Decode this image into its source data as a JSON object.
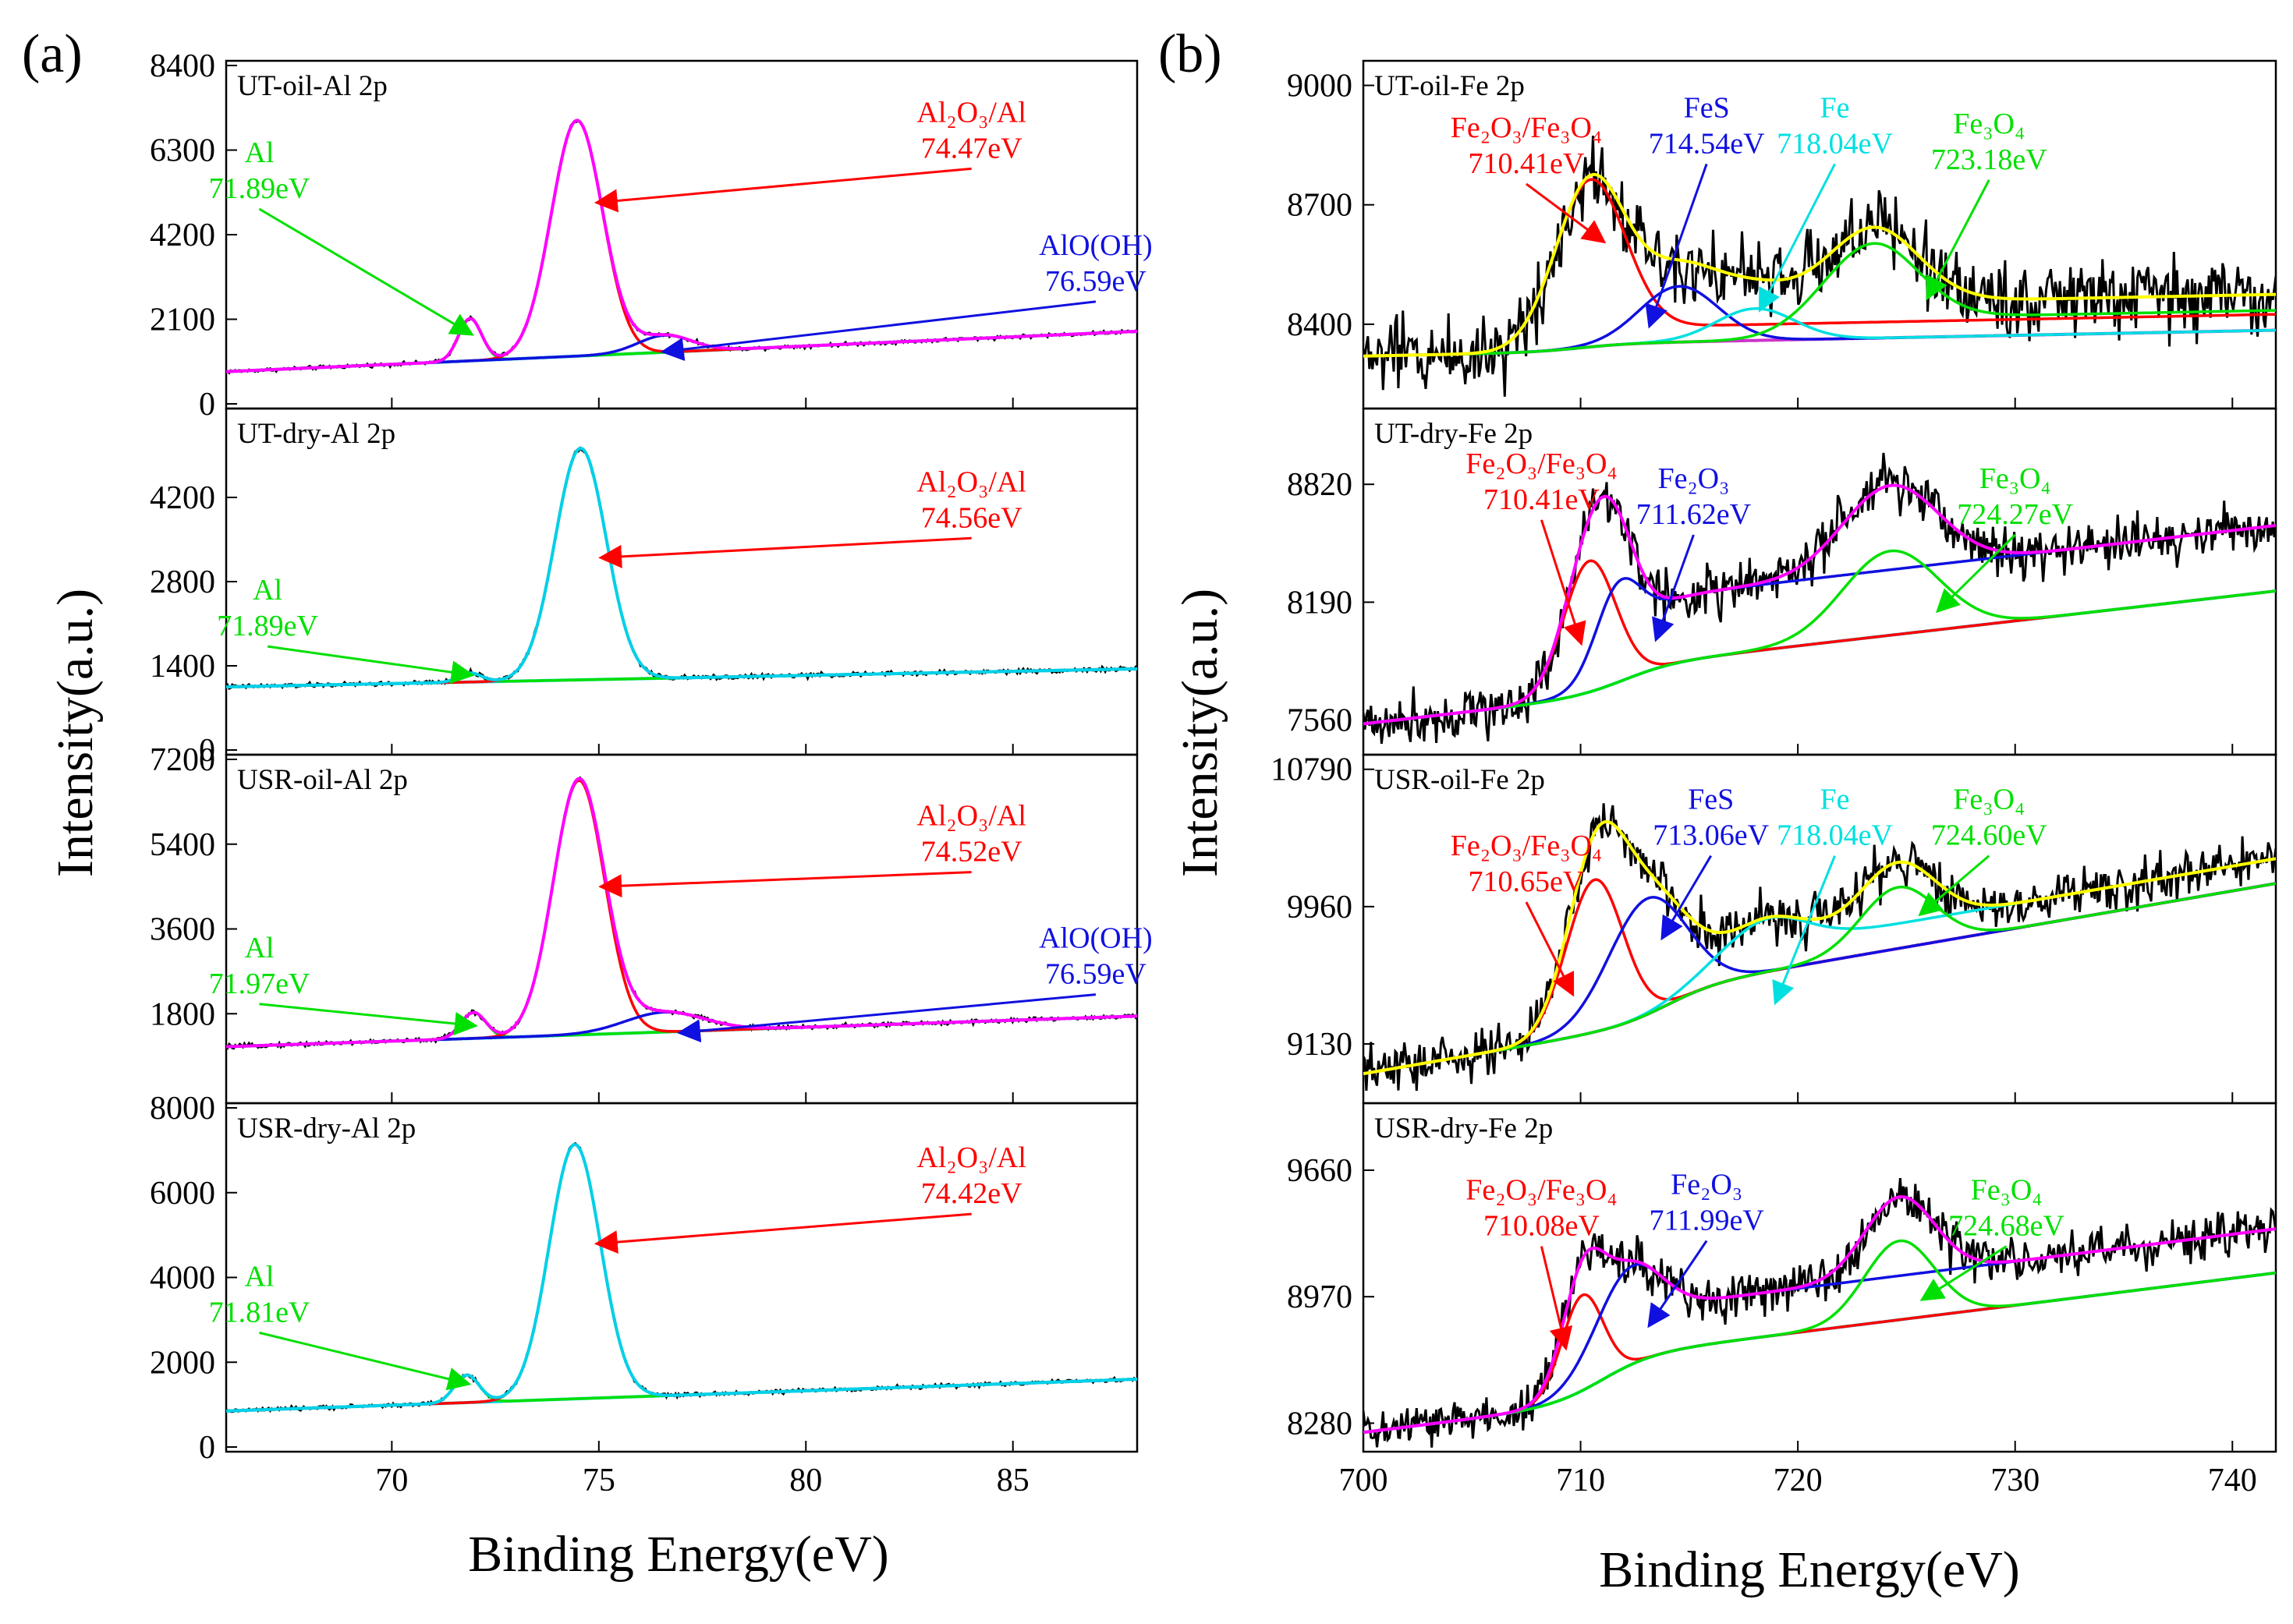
{
  "figure": {
    "panel_labels": [
      "(a)",
      "(b)"
    ],
    "ylabel": "Intensity(a.u.)",
    "xlabel": "Binding Energy(eV)"
  },
  "colors": {
    "envelope": "#000000",
    "fit_sum_yellow": "#ffff00",
    "fit_sum_magenta": "#ff00ff",
    "red": "#ff0000",
    "blue": "#1010e0",
    "cyan": "#00e0e0",
    "green": "#00e000",
    "baseline_cyan": "#00d0e8",
    "baseline_magenta": "#cc33cc"
  },
  "chart_data": [
    {
      "type": "line",
      "title": "UT-oil-Al 2p",
      "column": "a",
      "xlabel": "Binding Energy(eV)",
      "ylabel": "Intensity(a.u.)",
      "xlim": [
        66,
        88
      ],
      "ylim": [
        0,
        8400
      ],
      "xticks": [
        70,
        75,
        80,
        85
      ],
      "yticks": [
        0,
        2100,
        4200,
        6300,
        8400
      ],
      "noise": 30,
      "baseline": {
        "y0": 800,
        "y1": 1800,
        "step_at": 74.5,
        "step": 0,
        "color": "baseline_cyan"
      },
      "peaks": [
        {
          "name": "Al",
          "center": 71.89,
          "amp": 1050,
          "width": 0.28,
          "color": "green"
        },
        {
          "name": "Al2O3/Al",
          "center": 74.47,
          "amp": 5850,
          "width": 0.62,
          "color": "red"
        },
        {
          "name": "AlO(OH)",
          "center": 76.59,
          "amp": 420,
          "width": 0.65,
          "color": "blue"
        }
      ],
      "sum_color": "fit_sum_magenta",
      "annotations": [
        {
          "label": "Al",
          "value": "71.89eV",
          "color": "green",
          "at_x": 66.8,
          "at_y": 6000,
          "arrow_to": [
            71.89,
            1750
          ]
        },
        {
          "label": "Al₂O₃/Al",
          "value": "74.47eV",
          "color": "red",
          "at_x": 84.0,
          "at_y": 7000,
          "arrow_to": [
            75.0,
            5000
          ]
        },
        {
          "label": "AlO(OH)",
          "value": "76.59eV",
          "color": "blue",
          "at_x": 87.0,
          "at_y": 3700,
          "arrow_to": [
            76.6,
            1300
          ]
        }
      ]
    },
    {
      "type": "line",
      "title": "UT-dry-Al 2p",
      "column": "a",
      "xlabel": "Binding Energy(eV)",
      "ylabel": "Intensity(a.u.)",
      "xlim": [
        66,
        88
      ],
      "ylim": [
        0,
        5600
      ],
      "xticks": [
        70,
        75,
        80,
        85
      ],
      "yticks": [
        0,
        1400,
        2800,
        4200
      ],
      "noise": 25,
      "baseline": {
        "y0": 1050,
        "y1": 1350,
        "step_at": 74.5,
        "step": 0,
        "color": "baseline_cyan"
      },
      "peaks": [
        {
          "name": "Al",
          "center": 71.89,
          "amp": 150,
          "width": 0.28,
          "color": "green"
        },
        {
          "name": "Al2O3/Al",
          "center": 74.56,
          "amp": 3850,
          "width": 0.62,
          "color": "red"
        }
      ],
      "sum_color": "baseline_cyan",
      "annotations": [
        {
          "label": "Al",
          "value": "71.89eV",
          "color": "green",
          "at_x": 67.0,
          "at_y": 2500,
          "arrow_to": [
            71.89,
            1250
          ]
        },
        {
          "label": "Al₂O₃/Al",
          "value": "74.56eV",
          "color": "red",
          "at_x": 84.0,
          "at_y": 4300,
          "arrow_to": [
            75.1,
            3200
          ]
        }
      ]
    },
    {
      "type": "line",
      "title": "USR-oil-Al 2p",
      "column": "a",
      "xlabel": "Binding Energy(eV)",
      "ylabel": "Intensity(a.u.)",
      "xlim": [
        66,
        88
      ],
      "ylim": [
        0,
        7200
      ],
      "xticks": [
        70,
        75,
        80,
        85
      ],
      "yticks": [
        1800,
        3600,
        5400,
        7200
      ],
      "noise": 30,
      "baseline": {
        "y0": 1100,
        "y1": 1750,
        "step_at": 74.5,
        "step": 0,
        "color": "baseline_cyan"
      },
      "peaks": [
        {
          "name": "Al",
          "center": 71.97,
          "amp": 550,
          "width": 0.3,
          "color": "green"
        },
        {
          "name": "Al2O3/Al",
          "center": 74.52,
          "amp": 5400,
          "width": 0.62,
          "color": "red"
        },
        {
          "name": "AlO(OH)",
          "center": 76.59,
          "amp": 420,
          "width": 0.95,
          "color": "blue"
        }
      ],
      "sum_color": "fit_sum_magenta",
      "annotations": [
        {
          "label": "Al",
          "value": "71.97eV",
          "color": "green",
          "at_x": 66.8,
          "at_y": 3000,
          "arrow_to": [
            71.97,
            1550
          ]
        },
        {
          "label": "Al₂O₃/Al",
          "value": "74.52eV",
          "color": "red",
          "at_x": 84.0,
          "at_y": 5800,
          "arrow_to": [
            75.1,
            4500
          ]
        },
        {
          "label": "AlO(OH)",
          "value": "76.59eV",
          "color": "blue",
          "at_x": 87.0,
          "at_y": 3200,
          "arrow_to": [
            77.0,
            1400
          ]
        }
      ]
    },
    {
      "type": "line",
      "title": "USR-dry-Al 2p",
      "column": "a",
      "xlabel": "Binding Energy(eV)",
      "ylabel": "Intensity(a.u.)",
      "xlim": [
        66,
        88
      ],
      "ylim": [
        0,
        8000
      ],
      "xticks": [
        70,
        75,
        80,
        85
      ],
      "yticks": [
        0,
        2000,
        4000,
        6000,
        8000
      ],
      "noise": 30,
      "baseline": {
        "y0": 850,
        "y1": 1600,
        "step_at": 74.5,
        "step": 0,
        "color": "baseline_cyan"
      },
      "peaks": [
        {
          "name": "Al",
          "center": 71.81,
          "amp": 650,
          "width": 0.3,
          "color": "green"
        },
        {
          "name": "Al2O3/Al",
          "center": 74.42,
          "amp": 6000,
          "width": 0.62,
          "color": "red"
        }
      ],
      "sum_color": "baseline_cyan",
      "annotations": [
        {
          "label": "Al",
          "value": "71.81eV",
          "color": "green",
          "at_x": 66.8,
          "at_y": 3800,
          "arrow_to": [
            71.81,
            1500
          ]
        },
        {
          "label": "Al₂O₃/Al",
          "value": "74.42eV",
          "color": "red",
          "at_x": 84.0,
          "at_y": 6600,
          "arrow_to": [
            75.0,
            4800
          ]
        }
      ]
    },
    {
      "type": "line",
      "title": "UT-oil-Fe 2p",
      "column": "b",
      "xlabel": "Binding Energy(eV)",
      "ylabel": "Intensity(a.u.)",
      "xlim": [
        700,
        742
      ],
      "ylim": [
        8200,
        9050
      ],
      "xticks": [
        700,
        710,
        720,
        730,
        740
      ],
      "yticks": [
        8400,
        8700,
        9000
      ],
      "noise": 70,
      "baseline": {
        "y0": 8320,
        "y1": 8365,
        "step_at": 710,
        "step": 20,
        "color": "baseline_magenta"
      },
      "peaks": [
        {
          "name": "Fe2O3/Fe3O4",
          "center": 710.41,
          "amp": 400,
          "width": 1.6,
          "color": "red",
          "tail": 40
        },
        {
          "name": "FeS",
          "center": 714.54,
          "amp": 140,
          "width": 1.8,
          "color": "blue"
        },
        {
          "name": "Fe",
          "center": 718.04,
          "amp": 80,
          "width": 1.8,
          "color": "cyan"
        },
        {
          "name": "Fe3O4",
          "center": 723.18,
          "amp": 210,
          "width": 2.2,
          "color": "green",
          "tail": 50
        }
      ],
      "sum_color": "fit_sum_yellow",
      "annotations": [
        {
          "label": "Fe₂O₃/Fe₃O₄",
          "value": "710.41eV",
          "color": "red",
          "at_x": 707.5,
          "at_y": 8870,
          "arrow_to": [
            711.0,
            8610
          ]
        },
        {
          "label": "FeS",
          "value": "714.54eV",
          "color": "blue",
          "at_x": 715.8,
          "at_y": 8920,
          "arrow_to": [
            713.2,
            8400
          ]
        },
        {
          "label": "Fe",
          "value": "718.04eV",
          "color": "cyan",
          "at_x": 721.7,
          "at_y": 8920,
          "arrow_to": [
            718.3,
            8440
          ]
        },
        {
          "label": "Fe₃O₄",
          "value": "723.18eV",
          "color": "green",
          "at_x": 728.8,
          "at_y": 8880,
          "arrow_to": [
            726.0,
            8470
          ]
        }
      ]
    },
    {
      "type": "line",
      "title": "UT-dry-Fe 2p",
      "column": "b",
      "xlabel": "Binding Energy(eV)",
      "ylabel": "Intensity(a.u.)",
      "xlim": [
        700,
        742
      ],
      "ylim": [
        7400,
        9200
      ],
      "xticks": [
        700,
        710,
        720,
        730,
        740
      ],
      "yticks": [
        7560,
        8190,
        8820
      ],
      "noise": 100,
      "baseline": {
        "y0": 7540,
        "y1": 8100,
        "step_at": 712,
        "step": 150,
        "color": "baseline_cyan"
      },
      "peaks": [
        {
          "name": "Fe2O3/Fe3O4",
          "center": 710.41,
          "amp": 700,
          "width": 1.2,
          "color": "red"
        },
        {
          "name": "Fe2O3",
          "center": 711.62,
          "amp": 350,
          "width": 1.0,
          "color": "blue",
          "tail": 350
        },
        {
          "name": "Fe3O4",
          "center": 724.27,
          "amp": 450,
          "width": 2.2,
          "color": "green"
        }
      ],
      "sum_color": "fit_sum_magenta",
      "annotations": [
        {
          "label": "Fe₂O₃/Fe₃O₄",
          "value": "710.41eV",
          "color": "red",
          "at_x": 708.2,
          "at_y": 8880,
          "arrow_to": [
            710.0,
            7980
          ]
        },
        {
          "label": "Fe₂O₃",
          "value": "711.62eV",
          "color": "blue",
          "at_x": 715.2,
          "at_y": 8800,
          "arrow_to": [
            713.5,
            8000
          ]
        },
        {
          "label": "Fe₃O₄",
          "value": "724.27eV",
          "color": "green",
          "at_x": 730.0,
          "at_y": 8800,
          "arrow_to": [
            726.5,
            8150
          ]
        }
      ]
    },
    {
      "type": "line",
      "title": "USR-oil-Fe 2p",
      "column": "b",
      "xlabel": "Binding Energy(eV)",
      "ylabel": "Intensity(a.u.)",
      "xlim": [
        700,
        742
      ],
      "ylim": [
        8800,
        10850
      ],
      "xticks": [
        700,
        710,
        720,
        730,
        740
      ],
      "yticks": [
        9130,
        9960,
        10790
      ],
      "noise": 110,
      "baseline": {
        "y0": 8950,
        "y1": 9900,
        "step_at": 714,
        "step": 200,
        "color": "baseline_magenta"
      },
      "peaks": [
        {
          "name": "Fe2O3/Fe3O4",
          "center": 710.65,
          "amp": 920,
          "width": 1.3,
          "color": "red"
        },
        {
          "name": "FeS",
          "center": 713.06,
          "amp": 700,
          "width": 1.8,
          "color": "blue"
        },
        {
          "name": "Fe",
          "center": 718.04,
          "amp": 230,
          "width": 2.0,
          "color": "cyan",
          "tail": 150
        },
        {
          "name": "Fe3O4",
          "center": 724.6,
          "amp": 370,
          "width": 1.7,
          "color": "green"
        }
      ],
      "sum_color": "fit_sum_yellow",
      "annotations": [
        {
          "label": "Fe₂O₃/Fe₃O₄",
          "value": "710.65eV",
          "color": "red",
          "at_x": 707.5,
          "at_y": 10270,
          "arrow_to": [
            709.6,
            9440
          ]
        },
        {
          "label": "FeS",
          "value": "713.06eV",
          "color": "blue",
          "at_x": 716.0,
          "at_y": 10550,
          "arrow_to": [
            713.8,
            9780
          ]
        },
        {
          "label": "Fe",
          "value": "718.04eV",
          "color": "cyan",
          "at_x": 721.7,
          "at_y": 10550,
          "arrow_to": [
            719.0,
            9390
          ]
        },
        {
          "label": "Fe₃O₄",
          "value": "724.60eV",
          "color": "green",
          "at_x": 728.8,
          "at_y": 10550,
          "arrow_to": [
            725.7,
            9920
          ]
        }
      ]
    },
    {
      "type": "line",
      "title": "USR-dry-Fe 2p",
      "column": "b",
      "xlabel": "Binding Energy(eV)",
      "ylabel": "Intensity(a.u.)",
      "xlim": [
        700,
        742
      ],
      "ylim": [
        8150,
        10000
      ],
      "xticks": [
        700,
        710,
        720,
        730,
        740
      ],
      "yticks": [
        8280,
        8970,
        9660
      ],
      "noise": 90,
      "baseline": {
        "y0": 8230,
        "y1": 8850,
        "step_at": 711,
        "step": 250,
        "color": "baseline_cyan"
      },
      "peaks": [
        {
          "name": "Fe2O3/Fe3O4",
          "center": 710.08,
          "amp": 520,
          "width": 0.95,
          "color": "red"
        },
        {
          "name": "Fe2O3",
          "center": 711.99,
          "amp": 400,
          "width": 1.5,
          "color": "blue",
          "tail": 240
        },
        {
          "name": "Fe3O4",
          "center": 724.68,
          "amp": 430,
          "width": 1.6,
          "color": "green"
        }
      ],
      "sum_color": "fit_sum_magenta",
      "annotations": [
        {
          "label": "Fe₂O₃/Fe₃O₄",
          "value": "710.08eV",
          "color": "red",
          "at_x": 708.2,
          "at_y": 9500,
          "arrow_to": [
            709.3,
            8700
          ]
        },
        {
          "label": "Fe₂O₃",
          "value": "711.99eV",
          "color": "blue",
          "at_x": 715.8,
          "at_y": 9530,
          "arrow_to": [
            713.2,
            8820
          ]
        },
        {
          "label": "Fe₃O₄",
          "value": "724.68eV",
          "color": "green",
          "at_x": 729.6,
          "at_y": 9500,
          "arrow_to": [
            725.8,
            8960
          ]
        }
      ]
    }
  ]
}
